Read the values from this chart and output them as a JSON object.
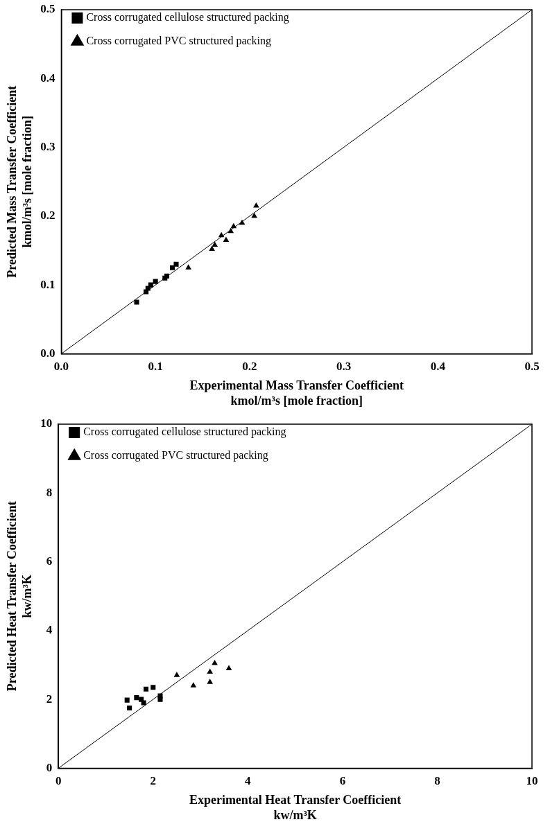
{
  "chart_data": [
    {
      "type": "scatter",
      "xlabel": "Experimental Mass Transfer Coefficient\nkmol/m³s [mole fraction]",
      "ylabel": "Predicted Mass Transfer Coefficient\nkmol/m³s [mole fraction]",
      "xlim": [
        0,
        0.5
      ],
      "ylim": [
        0,
        0.5
      ],
      "xticks": [
        {
          "value": 0,
          "label": "0.0"
        },
        0.1,
        0.2,
        0.3,
        0.4,
        0.5
      ],
      "yticks": [
        {
          "value": 0,
          "label": "0.0"
        },
        0.1,
        0.2,
        0.3,
        0.4,
        0.5
      ],
      "legend": "top left",
      "series": [
        {
          "name": "Cross corrugated cellulose structured packing",
          "color": "#000000",
          "marker": "square",
          "x": [
            0.08,
            0.09,
            0.092,
            0.095,
            0.1,
            0.11,
            0.112,
            0.118,
            0.122
          ],
          "values": [
            0.075,
            0.09,
            0.095,
            0.1,
            0.105,
            0.11,
            0.113,
            0.125,
            0.13
          ]
        },
        {
          "name": "Cross corrugated PVC structured packing",
          "color": "#000000",
          "marker": "triangle",
          "x": [
            0.135,
            0.16,
            0.163,
            0.17,
            0.175,
            0.18,
            0.183,
            0.192,
            0.205,
            0.207
          ],
          "values": [
            0.125,
            0.152,
            0.158,
            0.172,
            0.165,
            0.178,
            0.185,
            0.19,
            0.2,
            0.215
          ]
        },
        {
          "type": "line",
          "color": "#000000",
          "marker": "none",
          "x": [
            0,
            0.5
          ],
          "values": [
            0,
            0.5
          ]
        }
      ]
    },
    {
      "type": "scatter",
      "xlabel": "Experimental Heat Transfer Coefficient\nkw/m³K",
      "ylabel": "Predicted Heat Transfer Coefficient\nkw/m³K",
      "xlim": [
        0,
        10
      ],
      "ylim": [
        0,
        10
      ],
      "xticks": [
        0,
        2,
        4,
        6,
        8,
        10
      ],
      "yticks": [
        0,
        2,
        4,
        6,
        8,
        10
      ],
      "legend": "top left",
      "series": [
        {
          "name": "Cross corrugated cellulose structured packing",
          "color": "#000000",
          "marker": "square",
          "x": [
            1.45,
            1.5,
            1.65,
            1.75,
            1.8,
            1.85,
            2.0,
            2.15,
            2.15
          ],
          "values": [
            1.98,
            1.75,
            2.05,
            2.0,
            1.9,
            2.3,
            2.35,
            2.0,
            2.1
          ]
        },
        {
          "name": "Cross corrugated PVC structured packing",
          "color": "#000000",
          "marker": "triangle",
          "x": [
            2.5,
            2.85,
            3.2,
            3.2,
            3.3,
            3.6
          ],
          "values": [
            2.7,
            2.4,
            2.5,
            2.8,
            3.05,
            2.9
          ]
        },
        {
          "type": "line",
          "color": "#000000",
          "marker": "none",
          "x": [
            0,
            10
          ],
          "values": [
            0,
            10
          ]
        }
      ]
    }
  ]
}
